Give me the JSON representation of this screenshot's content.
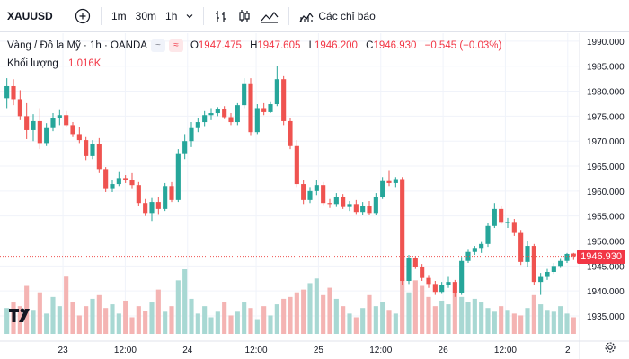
{
  "toolbar": {
    "symbol": "XAUUSD",
    "timeframes": [
      "1m",
      "30m",
      "1h"
    ],
    "indicators_label": "Các chỉ báo"
  },
  "legend": {
    "title": "Vàng / Đô la Mỹ · 1h · OANDA",
    "open_key": "O",
    "open": "1947.475",
    "high_key": "H",
    "high": "1947.605",
    "low_key": "L",
    "low": "1946.200",
    "close_key": "C",
    "close": "1946.930",
    "change": "−0.545 (−0.03%)"
  },
  "volume": {
    "label": "Khối lượng",
    "value": "1.016K"
  },
  "colors": {
    "up": "#26a69a",
    "down": "#ef5350",
    "up_vol": "#a8d8d3",
    "down_vol": "#f4b4b3",
    "accent": "#f23645"
  },
  "icons": {
    "add": "plus-circle-icon",
    "chevron": "chevron-down-icon",
    "bars": "bar-style-icon",
    "candles": "candle-style-icon",
    "compare": "compare-icon",
    "indicators": "indicators-icon",
    "logo": "tradingview-logo-icon",
    "settings": "gear-icon"
  },
  "chart_data": {
    "type": "candlestick",
    "y_axis": {
      "ticks": [
        "1990.000",
        "1985.000",
        "1980.000",
        "1975.000",
        "1970.000",
        "1965.000",
        "1960.000",
        "1955.000",
        "1950.000",
        "1945.000",
        "1940.000",
        "1935.000"
      ],
      "range": [
        1931.4,
        1991.6
      ]
    },
    "x_axis": {
      "ticks": [
        "23",
        "12:00",
        "24",
        "12:00",
        "25",
        "12:00",
        "26",
        "12:00",
        "2"
      ]
    },
    "last_price_label": "1946.930",
    "candles": [
      [
        1978.6,
        1982.6,
        1976.6,
        1981.0
      ],
      [
        1981.0,
        1982.4,
        1977.2,
        1978.4
      ],
      [
        1978.4,
        1980.2,
        1974.2,
        1975.0
      ],
      [
        1975.0,
        1977.6,
        1970.4,
        1972.2
      ],
      [
        1972.2,
        1975.4,
        1970.0,
        1974.0
      ],
      [
        1974.0,
        1976.6,
        1968.4,
        1969.6
      ],
      [
        1969.6,
        1973.6,
        1969.0,
        1972.6
      ],
      [
        1972.6,
        1975.6,
        1972.0,
        1974.6
      ],
      [
        1974.6,
        1976.2,
        1973.2,
        1975.2
      ],
      [
        1975.2,
        1976.0,
        1972.8,
        1973.2
      ],
      [
        1973.2,
        1973.8,
        1970.8,
        1971.4
      ],
      [
        1971.4,
        1972.8,
        1969.6,
        1970.2
      ],
      [
        1970.2,
        1970.8,
        1966.2,
        1967.0
      ],
      [
        1967.0,
        1970.2,
        1966.4,
        1969.4
      ],
      [
        1969.4,
        1970.6,
        1963.6,
        1964.4
      ],
      [
        1964.4,
        1964.8,
        1959.8,
        1960.4
      ],
      [
        1960.4,
        1962.2,
        1959.8,
        1961.4
      ],
      [
        1961.4,
        1963.8,
        1961.0,
        1962.6
      ],
      [
        1962.6,
        1963.2,
        1961.6,
        1962.2
      ],
      [
        1962.2,
        1963.6,
        1960.4,
        1961.2
      ],
      [
        1961.2,
        1961.8,
        1957.0,
        1957.6
      ],
      [
        1957.6,
        1958.4,
        1955.0,
        1955.6
      ],
      [
        1955.6,
        1958.6,
        1954.0,
        1957.8
      ],
      [
        1957.8,
        1958.8,
        1955.4,
        1956.4
      ],
      [
        1956.4,
        1961.6,
        1956.0,
        1961.0
      ],
      [
        1961.0,
        1961.8,
        1957.8,
        1958.2
      ],
      [
        1958.2,
        1968.4,
        1957.8,
        1967.4
      ],
      [
        1967.4,
        1971.4,
        1966.4,
        1970.0
      ],
      [
        1970.0,
        1973.8,
        1968.8,
        1972.6
      ],
      [
        1972.6,
        1974.6,
        1971.8,
        1973.8
      ],
      [
        1973.8,
        1976.0,
        1973.0,
        1975.2
      ],
      [
        1975.2,
        1976.6,
        1974.2,
        1975.6
      ],
      [
        1975.6,
        1976.8,
        1975.0,
        1976.4
      ],
      [
        1976.4,
        1977.0,
        1974.4,
        1974.8
      ],
      [
        1974.8,
        1975.6,
        1973.2,
        1973.8
      ],
      [
        1973.8,
        1977.6,
        1973.2,
        1977.2
      ],
      [
        1977.2,
        1982.6,
        1976.6,
        1981.4
      ],
      [
        1981.4,
        1982.6,
        1971.2,
        1971.8
      ],
      [
        1971.8,
        1977.4,
        1971.4,
        1976.6
      ],
      [
        1976.6,
        1977.6,
        1975.2,
        1975.8
      ],
      [
        1975.8,
        1977.8,
        1975.6,
        1977.4
      ],
      [
        1977.4,
        1985.0,
        1977.0,
        1982.4
      ],
      [
        1982.4,
        1983.0,
        1973.2,
        1974.0
      ],
      [
        1974.0,
        1974.6,
        1968.4,
        1969.0
      ],
      [
        1969.0,
        1970.2,
        1960.8,
        1961.4
      ],
      [
        1961.4,
        1962.2,
        1957.4,
        1958.2
      ],
      [
        1958.2,
        1960.8,
        1957.6,
        1960.0
      ],
      [
        1960.0,
        1962.2,
        1959.2,
        1961.2
      ],
      [
        1961.2,
        1961.8,
        1957.2,
        1957.6
      ],
      [
        1957.6,
        1958.4,
        1956.6,
        1957.4
      ],
      [
        1957.4,
        1959.6,
        1956.8,
        1958.8
      ],
      [
        1958.8,
        1959.4,
        1956.4,
        1956.8
      ],
      [
        1956.8,
        1958.0,
        1956.0,
        1957.4
      ],
      [
        1957.4,
        1958.2,
        1955.4,
        1955.8
      ],
      [
        1955.8,
        1957.8,
        1955.2,
        1957.0
      ],
      [
        1957.0,
        1958.0,
        1955.2,
        1955.6
      ],
      [
        1955.6,
        1959.6,
        1955.2,
        1958.8
      ],
      [
        1958.8,
        1962.8,
        1958.4,
        1962.0
      ],
      [
        1962.0,
        1964.2,
        1961.0,
        1961.6
      ],
      [
        1961.6,
        1962.8,
        1960.8,
        1962.4
      ],
      [
        1962.4,
        1962.8,
        1941.2,
        1942.0
      ],
      [
        1942.0,
        1947.2,
        1941.4,
        1946.6
      ],
      [
        1946.6,
        1947.0,
        1944.4,
        1944.8
      ],
      [
        1944.8,
        1945.4,
        1942.0,
        1942.6
      ],
      [
        1942.6,
        1943.2,
        1940.6,
        1941.4
      ],
      [
        1941.4,
        1942.0,
        1939.2,
        1939.8
      ],
      [
        1939.8,
        1941.8,
        1939.4,
        1941.2
      ],
      [
        1941.2,
        1942.8,
        1940.6,
        1941.8
      ],
      [
        1941.8,
        1942.2,
        1938.8,
        1939.6
      ],
      [
        1939.6,
        1946.8,
        1939.2,
        1946.0
      ],
      [
        1946.0,
        1948.4,
        1945.6,
        1947.8
      ],
      [
        1947.8,
        1949.0,
        1947.2,
        1948.6
      ],
      [
        1948.6,
        1949.8,
        1947.6,
        1949.4
      ],
      [
        1949.4,
        1953.6,
        1948.8,
        1953.0
      ],
      [
        1953.0,
        1957.6,
        1952.6,
        1956.4
      ],
      [
        1956.4,
        1957.0,
        1953.4,
        1953.8
      ],
      [
        1953.8,
        1954.6,
        1952.6,
        1953.8
      ],
      [
        1953.8,
        1954.4,
        1951.0,
        1951.6
      ],
      [
        1951.6,
        1952.2,
        1945.2,
        1945.8
      ],
      [
        1945.8,
        1950.0,
        1944.8,
        1949.0
      ],
      [
        1949.0,
        1949.4,
        1941.2,
        1941.8
      ],
      [
        1941.8,
        1943.6,
        1939.2,
        1942.8
      ],
      [
        1942.8,
        1944.4,
        1942.2,
        1943.8
      ],
      [
        1943.8,
        1945.6,
        1943.4,
        1945.0
      ],
      [
        1945.0,
        1946.4,
        1944.6,
        1946.0
      ],
      [
        1946.0,
        1947.6,
        1945.6,
        1947.4
      ],
      [
        1947.475,
        1947.605,
        1946.2,
        1946.93
      ]
    ],
    "volumes": [
      28,
      34,
      30,
      52,
      26,
      45,
      22,
      40,
      30,
      62,
      35,
      20,
      30,
      38,
      42,
      28,
      32,
      22,
      36,
      18,
      30,
      25,
      34,
      48,
      24,
      30,
      58,
      70,
      38,
      22,
      30,
      18,
      24,
      35,
      20,
      24,
      34,
      28,
      16,
      30,
      20,
      32,
      38,
      40,
      45,
      48,
      55,
      60,
      42,
      50,
      38,
      30,
      22,
      18,
      28,
      42,
      30,
      35,
      26,
      22,
      60,
      45,
      58,
      52,
      40,
      30,
      36,
      32,
      44,
      40,
      35,
      38,
      34,
      28,
      24,
      30,
      26,
      22,
      20,
      28,
      42,
      32,
      26,
      24,
      30,
      22,
      18
    ]
  }
}
